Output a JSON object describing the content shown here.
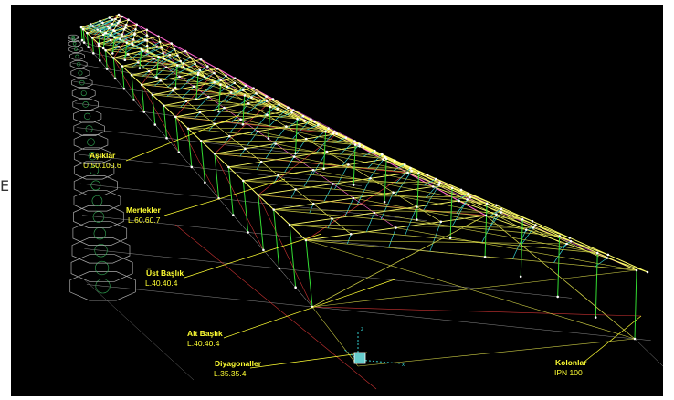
{
  "edge_glyph": "E",
  "labels": [
    {
      "name": "Aşıklar",
      "section": "U.50.100.6"
    },
    {
      "name": "Mertekler",
      "section": "L.60.60.7"
    },
    {
      "name": "Üst Başlık",
      "section": "L.40.40.4"
    },
    {
      "name": "Alt Başlık",
      "section": "L.40.40.4"
    },
    {
      "name": "Diyagonaller",
      "section": "L.35.35.4"
    },
    {
      "name": "Kolonlar",
      "section": "IPN 100"
    }
  ],
  "colors": {
    "background": "#000000",
    "columns": "#33dd33",
    "top_chord": "#ffff66",
    "purlins": "#ff66cc",
    "diagonals": "#cccc44",
    "bracing": "#cc3333",
    "vertical_struts": "#33cccc",
    "nodes": "#ffffff",
    "grid": "#888888",
    "labels": "#ffff33"
  },
  "icons": [
    "axis-gizmo-icon",
    "column-footprint-icon"
  ]
}
